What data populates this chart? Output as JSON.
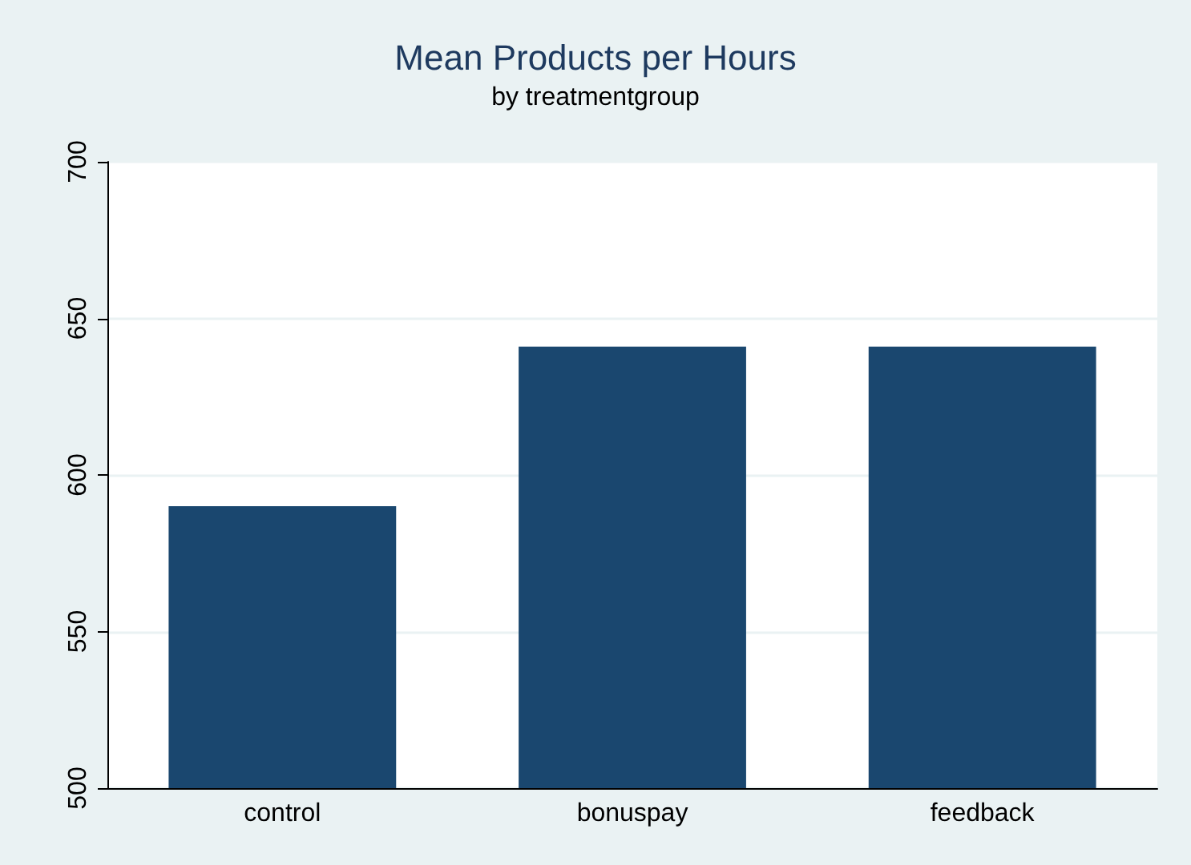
{
  "chart_data": {
    "type": "bar",
    "title": "Mean Products per Hours",
    "subtitle": "by treatmentgroup",
    "categories": [
      "control",
      "bonuspay",
      "feedback"
    ],
    "values": [
      590,
      641,
      641
    ],
    "color": "#1a476f",
    "ylim": [
      500,
      700
    ],
    "yticks": [
      500,
      550,
      600,
      650,
      700
    ],
    "grid": "y"
  }
}
